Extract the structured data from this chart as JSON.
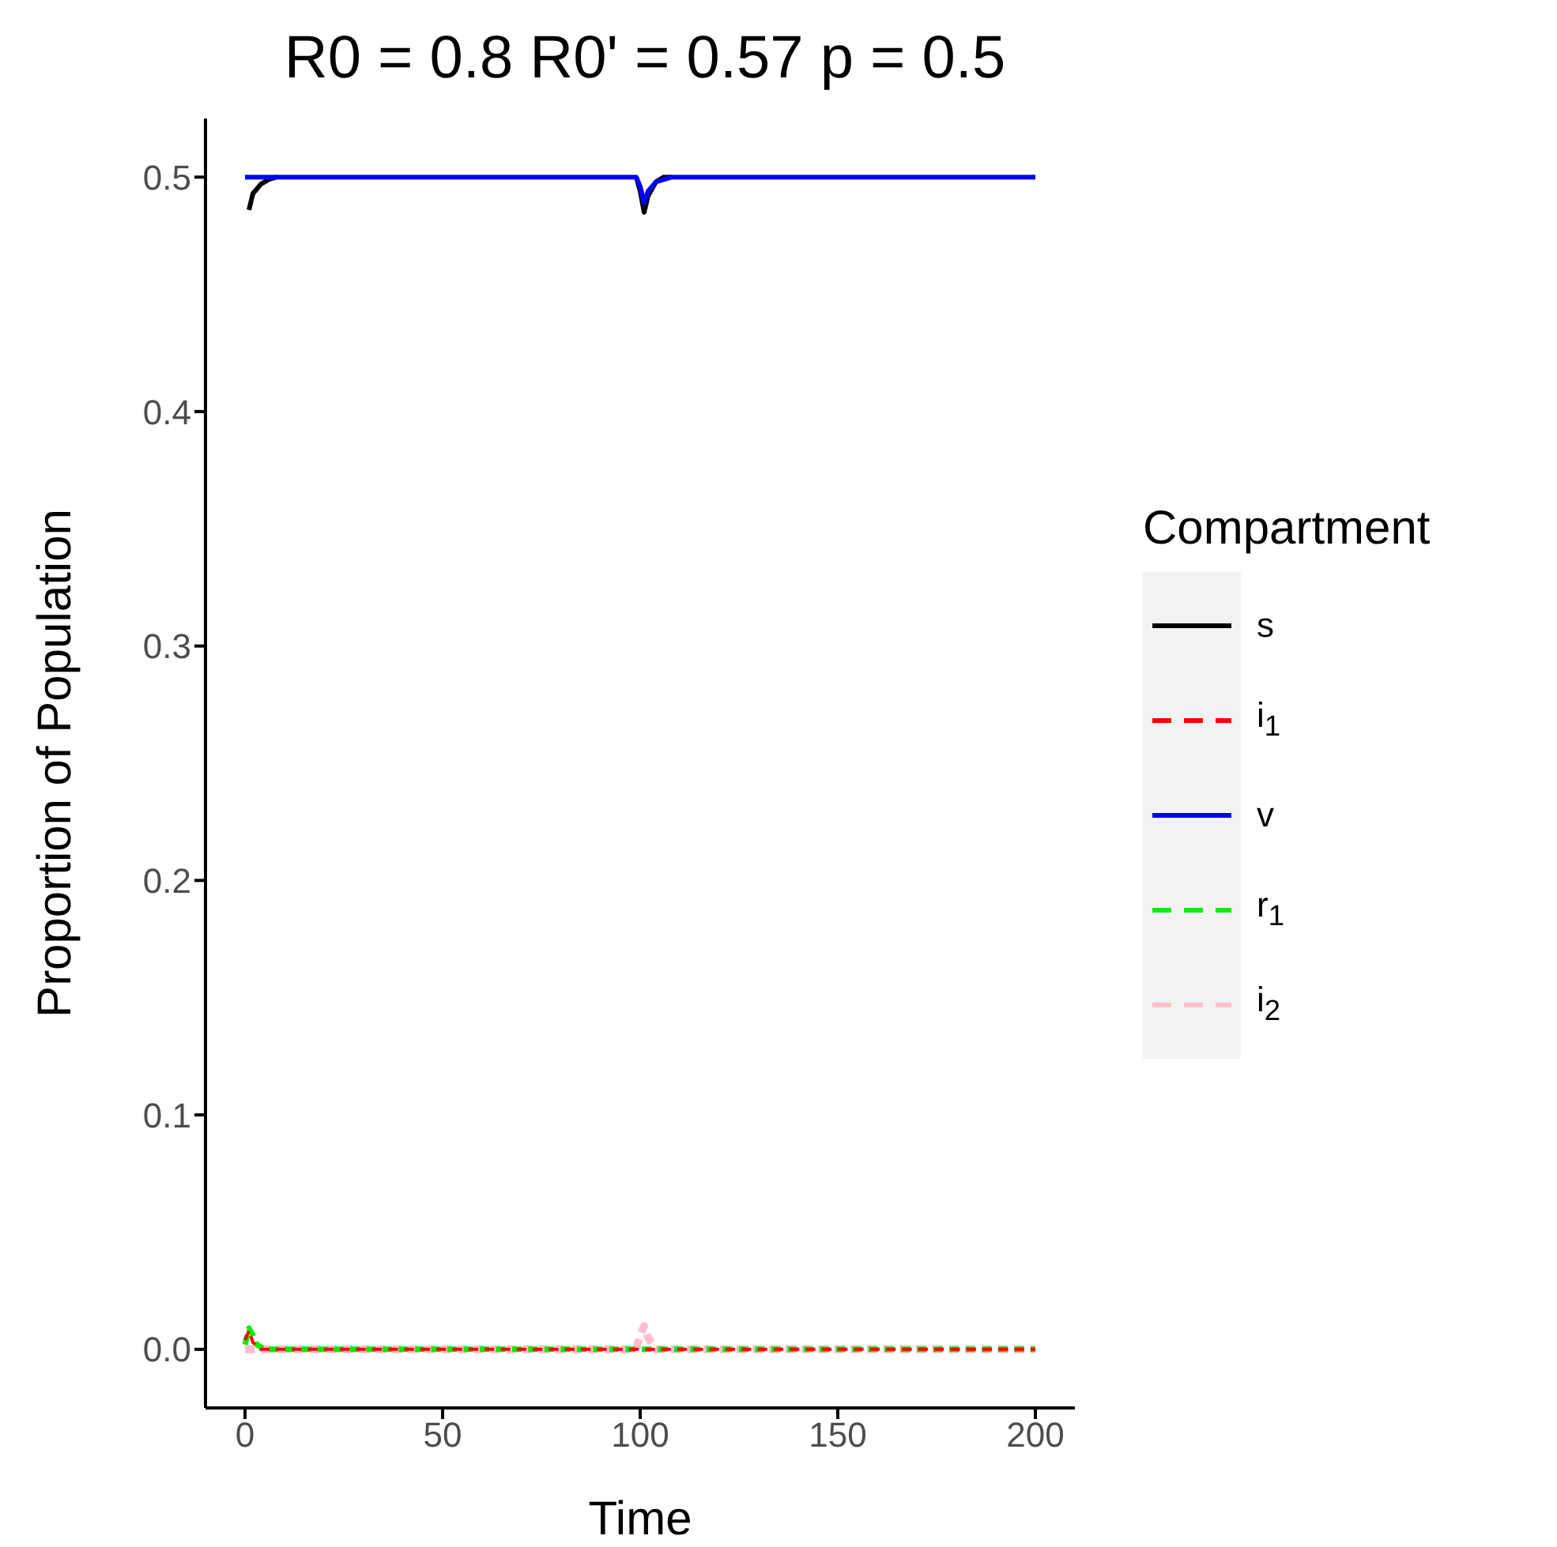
{
  "chart_data": {
    "type": "line",
    "title": "R0 = 0.8 R0' = 0.57 p = 0.5",
    "xlabel": "Time",
    "ylabel": "Proportion of Population",
    "legend_title": "Compartment",
    "legend": "right",
    "grid": false,
    "marker": "none",
    "xlim": [
      -10,
      210
    ],
    "xticks": [
      0,
      50,
      100,
      150,
      200
    ],
    "ylim": [
      -0.025,
      0.525
    ],
    "yticks": [
      {
        "value": 0,
        "label": "0.0"
      },
      {
        "value": 0.1,
        "label": "0.1"
      },
      {
        "value": 0.2,
        "label": "0.2"
      },
      {
        "value": 0.3,
        "label": "0.3"
      },
      {
        "value": 0.4,
        "label": "0.4"
      },
      {
        "value": 0.5,
        "label": "0.5"
      }
    ],
    "series": [
      {
        "name": "s",
        "color": "#000000",
        "line_style": "solid",
        "x": [
          1,
          2,
          4,
          6,
          8,
          10,
          50,
          99,
          100,
          101,
          102,
          104,
          106,
          108
        ],
        "values": [
          0.486,
          0.493,
          0.497,
          0.499,
          0.5,
          null,
          null,
          0.5,
          0.494,
          0.485,
          0.492,
          0.498,
          0.5,
          0.5
        ]
      },
      {
        "name": "i$_{1}$",
        "color": "#ff0000",
        "line_style": "dashed",
        "x": [
          0,
          1,
          2,
          4,
          200
        ],
        "values": [
          0.004,
          0.008,
          0.003,
          0,
          0
        ]
      },
      {
        "name": "v",
        "color": "#0000ff",
        "line_style": "solid",
        "x": [
          0,
          99,
          100,
          101,
          102,
          104,
          106,
          108,
          200
        ],
        "values": [
          0.5,
          0.5,
          0.496,
          0.489,
          0.494,
          0.498,
          0.499,
          0.5,
          0.5
        ]
      },
      {
        "name": "r$_{1}$",
        "color": "#00ee00",
        "line_style": "dashed",
        "x": [
          0,
          1,
          2,
          3,
          5,
          200
        ],
        "values": [
          0.002,
          0.009,
          0.006,
          0.002,
          0,
          0
        ]
      },
      {
        "name": "i$_{2}$",
        "color": "#ffc0cb",
        "line_style": "dashed",
        "x": [
          0,
          99,
          100,
          101,
          102,
          104,
          200
        ],
        "values": [
          0,
          0,
          0.006,
          0.01,
          0.005,
          0,
          0
        ]
      }
    ]
  }
}
